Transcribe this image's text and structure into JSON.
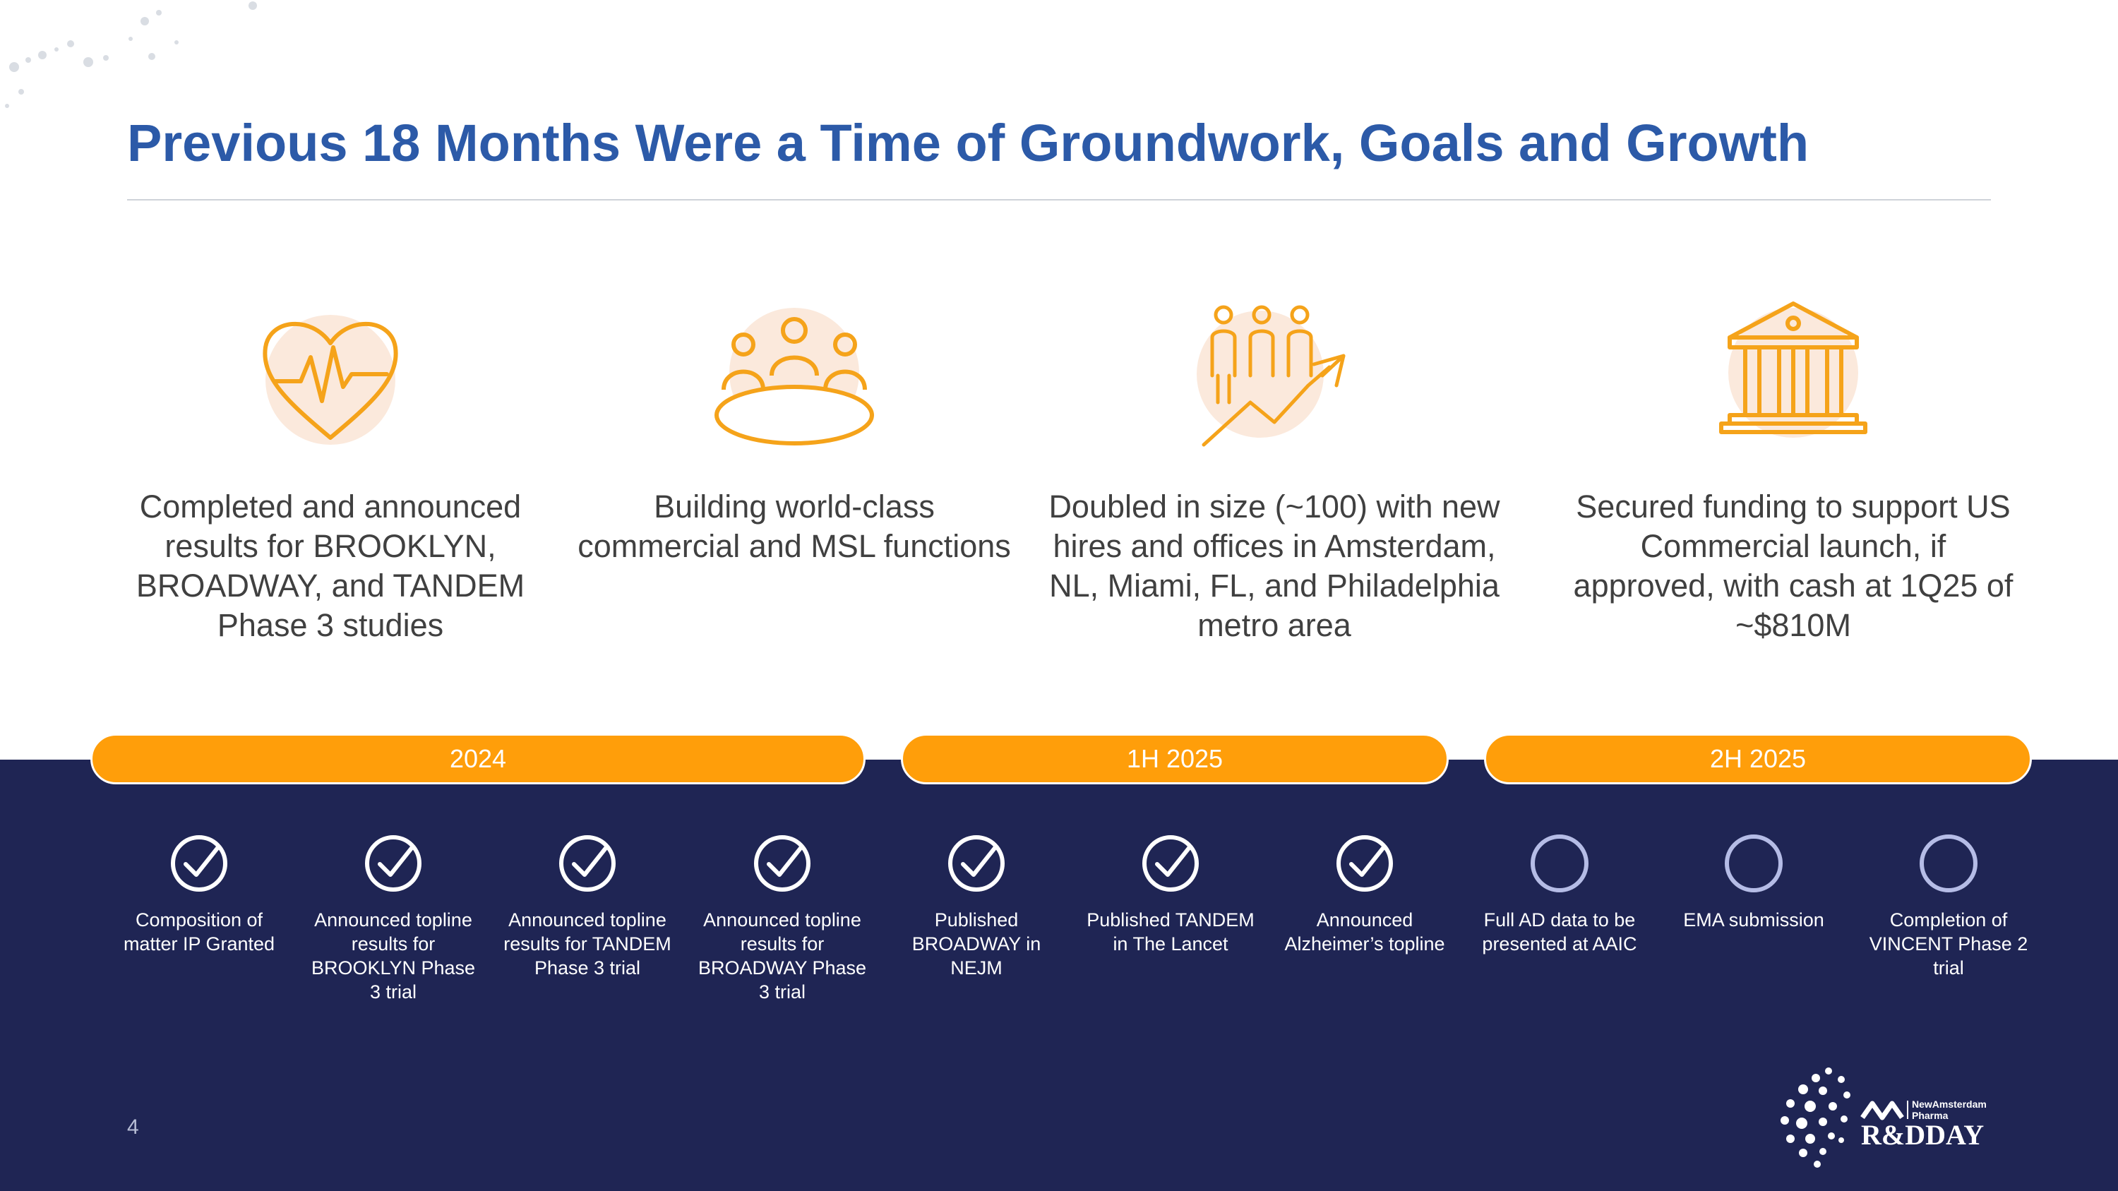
{
  "colors": {
    "title": "#2c5aa8",
    "orange": "#ff9e0a",
    "navy": "#1f2554",
    "peach": "#fbe9dc"
  },
  "title": "Previous 18 Months Were a Time of Groundwork, Goals and Growth",
  "pillars": [
    {
      "icon": "heart-pulse-icon",
      "text": "Completed and announced results for BROOKLYN, BROADWAY, and TANDEM Phase 3 studies"
    },
    {
      "icon": "team-table-icon",
      "text": "Building world-class commercial and MSL functions"
    },
    {
      "icon": "people-growth-icon",
      "text": "Doubled in size (~100) with new hires and offices in Amsterdam, NL, Miami, FL, and Philadelphia metro area"
    },
    {
      "icon": "bank-building-icon",
      "text": "Secured funding to support US Commercial launch, if approved, with cash at 1Q25 of ~$810M"
    }
  ],
  "periods": [
    "2024",
    "1H 2025",
    "2H 2025"
  ],
  "milestones": [
    {
      "label": "Composition of matter IP Granted",
      "status": "completed"
    },
    {
      "label": "Announced topline results for BROOKLYN Phase 3 trial",
      "status": "completed"
    },
    {
      "label": "Announced topline results for TANDEM Phase 3 trial",
      "status": "completed"
    },
    {
      "label": "Announced topline results for BROADWAY Phase 3 trial",
      "status": "completed"
    },
    {
      "label": "Published BROADWAY in NEJM",
      "status": "completed"
    },
    {
      "label": "Published TANDEM in The Lancet",
      "status": "completed"
    },
    {
      "label": "Announced Alzheimer’s topline",
      "status": "completed"
    },
    {
      "label": "Full AD data to be presented at AAIC",
      "status": "upcoming"
    },
    {
      "label": "EMA submission",
      "status": "upcoming"
    },
    {
      "label": "Completion of VINCENT Phase 2 trial",
      "status": "upcoming"
    }
  ],
  "page_number": "4",
  "logo": {
    "company": "NewAmsterdam Pharma",
    "event": "R&DDAY"
  }
}
